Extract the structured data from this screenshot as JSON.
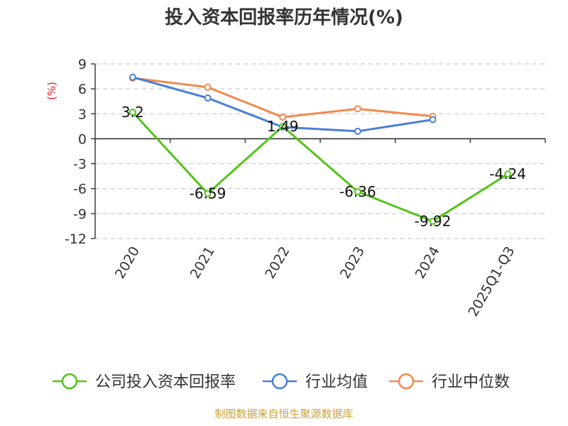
{
  "chart_data": {
    "type": "line",
    "title": "投入资本回报率历年情况(%)",
    "ylabel": "(%)",
    "categories": [
      "2020",
      "2021",
      "2022",
      "2023",
      "2024",
      "2025Q1-Q3"
    ],
    "y_ticks": [
      "9",
      "6",
      "3",
      "0",
      "-3",
      "-6",
      "-9",
      "-12"
    ],
    "ylim": [
      -12,
      9
    ],
    "grid": true,
    "legend_position": "bottom",
    "series": [
      {
        "name": "公司投入资本回报率",
        "color": "#52c41a",
        "values": [
          3.2,
          -6.59,
          1.49,
          -6.36,
          -9.92,
          -4.24
        ],
        "labels": [
          "3.2",
          "-6.59",
          "1.49",
          "-6.36",
          "-9.92",
          "-4.24"
        ]
      },
      {
        "name": "行业均值",
        "color": "#4a7fd4",
        "values": [
          7.4,
          4.9,
          1.4,
          0.9,
          2.3,
          null
        ]
      },
      {
        "name": "行业中位数",
        "color": "#f4894d",
        "values": [
          7.3,
          6.2,
          2.6,
          3.6,
          2.7,
          null
        ]
      }
    ]
  },
  "source": {
    "text": "制图数据来自恒生聚源数据库",
    "color": "#c8a040"
  },
  "colors": {
    "unit_label": "#e02020",
    "axis": "#333333",
    "grid": "#cccccc"
  }
}
